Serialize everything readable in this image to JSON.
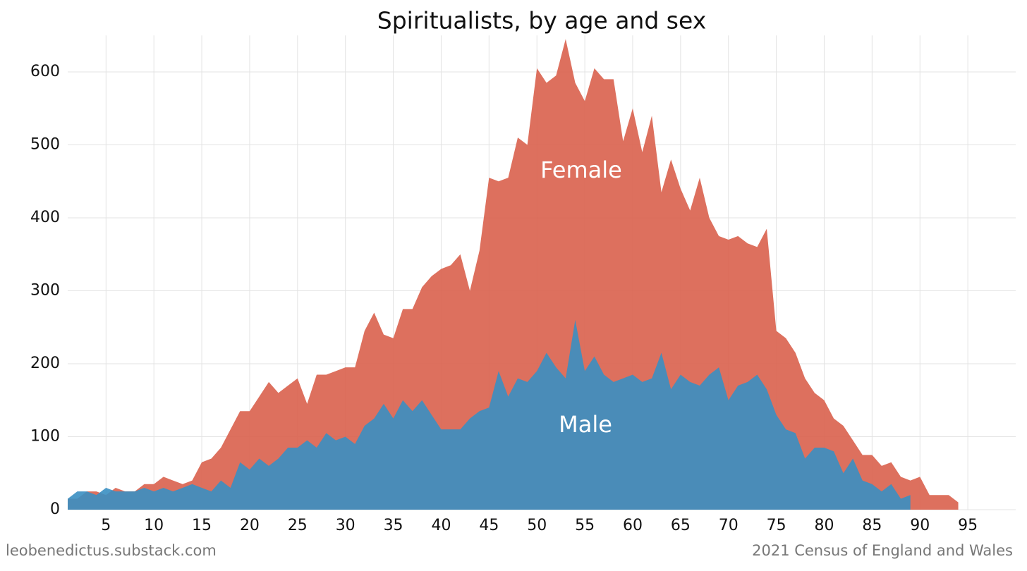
{
  "chart_data": {
    "type": "area",
    "title": "Spiritualists, by age and sex",
    "credit": "leobenedictus.substack.com",
    "source": "2021 Census of England and Wales",
    "x": [
      1,
      2,
      3,
      4,
      5,
      6,
      7,
      8,
      9,
      10,
      11,
      12,
      13,
      14,
      15,
      16,
      17,
      18,
      19,
      20,
      21,
      22,
      23,
      24,
      25,
      26,
      27,
      28,
      29,
      30,
      31,
      32,
      33,
      34,
      35,
      36,
      37,
      38,
      39,
      40,
      41,
      42,
      43,
      44,
      45,
      46,
      47,
      48,
      49,
      50,
      51,
      52,
      53,
      54,
      55,
      56,
      57,
      58,
      59,
      60,
      61,
      62,
      63,
      64,
      65,
      66,
      67,
      68,
      69,
      70,
      71,
      72,
      73,
      74,
      75,
      76,
      77,
      78,
      79,
      80,
      81,
      82,
      83,
      84,
      85,
      86,
      87,
      88,
      89,
      90,
      91,
      92,
      93,
      94
    ],
    "series": [
      {
        "name": "Female",
        "color": "#d9604c",
        "values": [
          15,
          15,
          25,
          25,
          20,
          30,
          25,
          25,
          35,
          35,
          45,
          40,
          35,
          40,
          65,
          70,
          85,
          110,
          135,
          135,
          155,
          175,
          160,
          170,
          180,
          145,
          185,
          185,
          190,
          195,
          195,
          245,
          270,
          240,
          235,
          275,
          275,
          305,
          320,
          330,
          335,
          350,
          300,
          355,
          455,
          450,
          455,
          510,
          500,
          605,
          585,
          595,
          645,
          585,
          560,
          605,
          590,
          590,
          505,
          550,
          490,
          540,
          435,
          480,
          440,
          410,
          455,
          400,
          375,
          370,
          375,
          365,
          360,
          385,
          245,
          235,
          215,
          180,
          160,
          150,
          125,
          115,
          95,
          75,
          75,
          60,
          65,
          45,
          40,
          45,
          20,
          20,
          20,
          10
        ]
      },
      {
        "name": "Male",
        "color": "#3a8fc2",
        "values": [
          15,
          25,
          25,
          20,
          30,
          25,
          25,
          25,
          30,
          25,
          30,
          25,
          30,
          35,
          30,
          25,
          40,
          30,
          65,
          55,
          70,
          60,
          70,
          85,
          85,
          95,
          85,
          105,
          95,
          100,
          90,
          115,
          125,
          145,
          125,
          150,
          135,
          150,
          130,
          110,
          110,
          110,
          125,
          135,
          140,
          190,
          155,
          180,
          175,
          190,
          215,
          195,
          180,
          260,
          190,
          210,
          185,
          175,
          180,
          185,
          175,
          180,
          215,
          165,
          185,
          175,
          170,
          185,
          195,
          150,
          170,
          175,
          185,
          165,
          130,
          110,
          105,
          70,
          85,
          85,
          80,
          50,
          70,
          40,
          35,
          25,
          35,
          15,
          20,
          null,
          null,
          null,
          null,
          null
        ]
      }
    ],
    "xlim": [
      1,
      100
    ],
    "xticks": [
      5,
      10,
      15,
      20,
      25,
      30,
      35,
      40,
      45,
      50,
      55,
      60,
      65,
      70,
      75,
      80,
      85,
      90,
      95
    ],
    "ylim": [
      0,
      650
    ],
    "yticks": [
      0,
      100,
      200,
      300,
      400,
      500,
      600
    ],
    "grid": true
  }
}
